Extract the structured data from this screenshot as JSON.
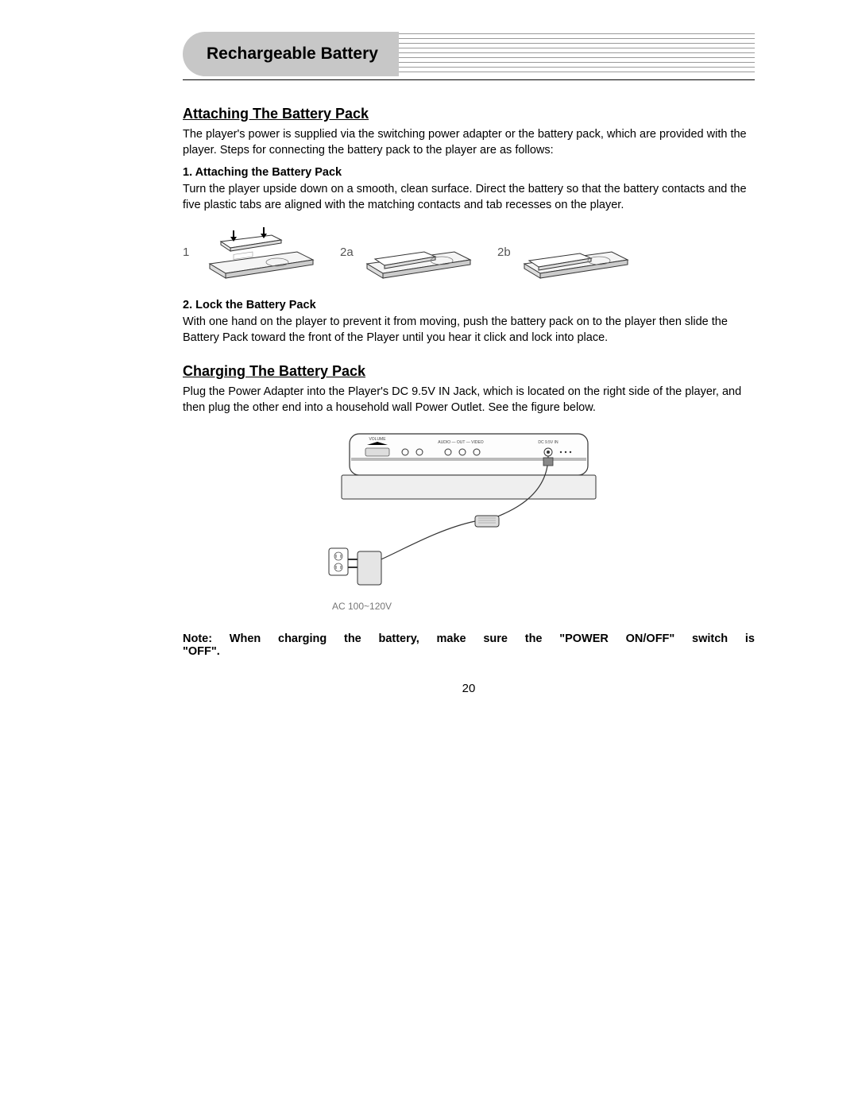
{
  "header": {
    "title": "Rechargeable Battery",
    "tab_bg": "#c7c7c7",
    "line_color": "#9a9a9a",
    "num_lines": 9
  },
  "section1": {
    "title": "Attaching The Battery Pack",
    "intro": "The player's power is supplied via the switching power adapter or the battery pack, which are provided with the player. Steps for connecting the battery pack to the player are as follows:",
    "step1_label": "1. Attaching the Battery Pack",
    "step1_body": "Turn the player upside down on a smooth, clean surface. Direct the battery so that the battery contacts and the five plastic tabs are aligned with the matching contacts and tab recesses on the player.",
    "step2_label": "2. Lock the Battery Pack",
    "step2_body": "With one hand on the player to prevent it from moving, push the battery pack on to the player then slide the Battery Pack toward the front of the Player until you hear it click and lock into place.",
    "fig_labels": [
      "1",
      "2a",
      "2b"
    ]
  },
  "section2": {
    "title": "Charging The Battery Pack",
    "body": "Plug the Power Adapter into the Player's DC 9.5V IN Jack, which is located on the right side of the player, and then plug the other end into a household wall Power Outlet. See the figure below.",
    "ac_label": "AC 100~120V",
    "port_labels": {
      "volume": "VOLUME",
      "av": "AUDIO — OUT — VIDEO",
      "dc": "DC 9.5V IN"
    },
    "note_line1": "Note:  When  charging  the  battery,  make  sure  the  \"POWER  ON/OFF\"  switch  is",
    "note_line2": "\"OFF\"."
  },
  "page_number": "20",
  "colors": {
    "text": "#000000",
    "muted": "#777777",
    "outline": "#333333",
    "fill_light": "#ffffff",
    "fill_gray": "#e8e8e8",
    "fill_mid": "#cccccc"
  }
}
